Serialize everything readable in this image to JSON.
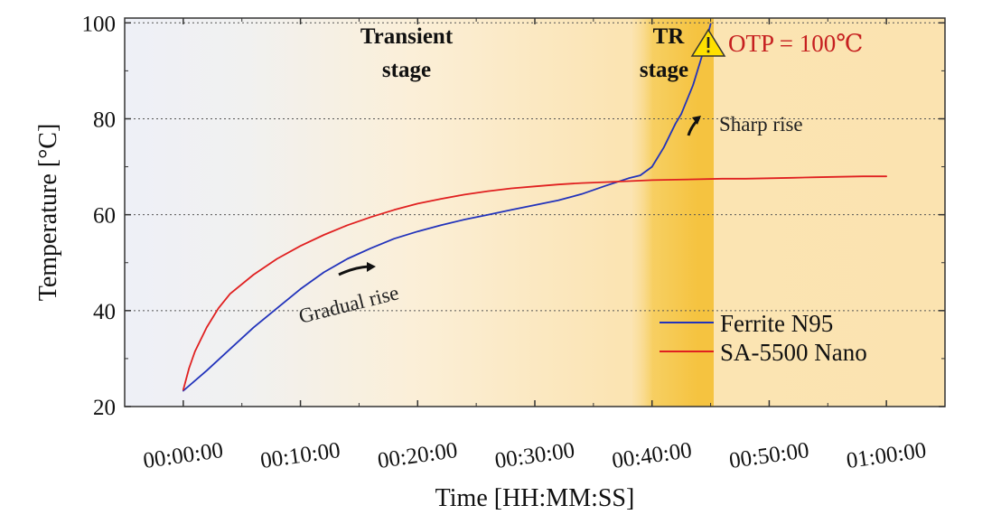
{
  "chart_data": {
    "type": "line",
    "xlabel": "Time [HH:MM:SS]",
    "ylabel": "Temperature [°C]",
    "x_unit": "minutes",
    "xlim": [
      -5,
      65
    ],
    "ylim": [
      20,
      101
    ],
    "x_ticks": [
      {
        "value": 0,
        "label": "00:00:00"
      },
      {
        "value": 10,
        "label": "00:10:00"
      },
      {
        "value": 20,
        "label": "00:20:00"
      },
      {
        "value": 30,
        "label": "00:30:00"
      },
      {
        "value": 40,
        "label": "00:40:00"
      },
      {
        "value": 50,
        "label": "00:50:00"
      },
      {
        "value": 60,
        "label": "01:00:00"
      }
    ],
    "y_ticks": [
      {
        "value": 20,
        "label": "20"
      },
      {
        "value": 40,
        "label": "40"
      },
      {
        "value": 60,
        "label": "60"
      },
      {
        "value": 80,
        "label": "80"
      },
      {
        "value": 100,
        "label": "100"
      }
    ],
    "grid": {
      "horizontal": true,
      "style": "dotted"
    },
    "legend_position": "bottom-right",
    "colors": {
      "ferrite": "#2233bb",
      "nano": "#e02020",
      "otp": "#c62020",
      "tr_band": "#f5c542",
      "transient_band": "#fbe8bf"
    },
    "series": [
      {
        "name": "Ferrite N95",
        "color": "#2233bb",
        "points": [
          [
            0,
            23.3
          ],
          [
            2,
            27.5
          ],
          [
            4,
            32
          ],
          [
            6,
            36.5
          ],
          [
            8,
            40.5
          ],
          [
            10,
            44.5
          ],
          [
            12,
            48
          ],
          [
            14,
            50.8
          ],
          [
            16,
            53
          ],
          [
            18,
            55
          ],
          [
            20,
            56.5
          ],
          [
            22,
            57.8
          ],
          [
            24,
            59
          ],
          [
            26,
            60
          ],
          [
            28,
            61
          ],
          [
            30,
            62
          ],
          [
            32,
            63
          ],
          [
            34,
            64.3
          ],
          [
            36,
            66
          ],
          [
            38,
            67.6
          ],
          [
            39,
            68.2
          ],
          [
            40,
            70
          ],
          [
            41,
            74
          ],
          [
            42,
            79
          ],
          [
            42.5,
            81
          ],
          [
            43,
            84
          ],
          [
            43.5,
            87
          ],
          [
            44,
            91
          ],
          [
            44.5,
            95
          ],
          [
            45,
            99.8
          ]
        ]
      },
      {
        "name": "SA-5500 Nano",
        "color": "#e02020",
        "points": [
          [
            0,
            23.5
          ],
          [
            0.5,
            28
          ],
          [
            1,
            31.5
          ],
          [
            2,
            36.5
          ],
          [
            3,
            40.5
          ],
          [
            4,
            43.5
          ],
          [
            6,
            47.5
          ],
          [
            8,
            50.8
          ],
          [
            10,
            53.5
          ],
          [
            12,
            55.8
          ],
          [
            14,
            57.8
          ],
          [
            16,
            59.5
          ],
          [
            18,
            61
          ],
          [
            20,
            62.3
          ],
          [
            22,
            63.3
          ],
          [
            24,
            64.2
          ],
          [
            26,
            64.9
          ],
          [
            28,
            65.5
          ],
          [
            30,
            65.9
          ],
          [
            32,
            66.3
          ],
          [
            34,
            66.6
          ],
          [
            36,
            66.8
          ],
          [
            38,
            67
          ],
          [
            40,
            67.2
          ],
          [
            42,
            67.3
          ],
          [
            44,
            67.4
          ],
          [
            46,
            67.5
          ],
          [
            48,
            67.5
          ],
          [
            50,
            67.6
          ],
          [
            52,
            67.7
          ],
          [
            54,
            67.8
          ],
          [
            56,
            67.9
          ],
          [
            58,
            68
          ],
          [
            60,
            68
          ]
        ]
      }
    ],
    "regions": [
      {
        "label": "Transient stage",
        "x_start": 10,
        "x_end": 38
      },
      {
        "label": "TR stage",
        "x_start": 38.5,
        "x_end": 45.5
      }
    ],
    "annotations": [
      {
        "text": "Gradual rise",
        "x": 17,
        "y": 43
      },
      {
        "text": "Sharp rise",
        "x": 45.5,
        "y": 81.5
      },
      {
        "text": "OTP = 100℃",
        "x": 46.5,
        "y": 99.5
      }
    ]
  },
  "stage_labels": {
    "transient": [
      "Transient",
      "stage"
    ],
    "tr": [
      "TR",
      "stage"
    ]
  },
  "annotations_text": {
    "gradual": "Gradual rise",
    "sharp": "Sharp rise",
    "otp": "OTP = 100℃"
  },
  "legend": [
    {
      "label": "Ferrite N95",
      "color": "#2233bb"
    },
    {
      "label": "SA-5500 Nano",
      "color": "#e02020"
    }
  ]
}
